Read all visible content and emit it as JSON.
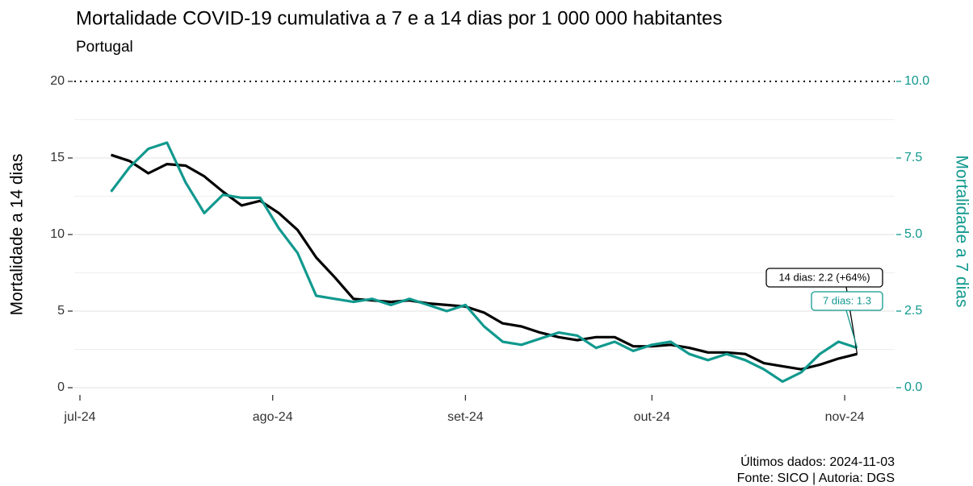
{
  "chart_data": {
    "type": "line",
    "title": "Mortalidade COVID-19 cumulativa a 7 e a 14 dias por 1 000 000 habitantes",
    "subtitle": "Portugal",
    "ylabel": "Mortalidade a 14 dias",
    "y2label": "Mortalidade a 7 dias",
    "caption": [
      "Últimos dados: 2024-11-03",
      "Fonte: SICO | Autoria: DGS"
    ],
    "x": [
      "2024-07-06",
      "2024-07-09",
      "2024-07-12",
      "2024-07-15",
      "2024-07-18",
      "2024-07-21",
      "2024-07-24",
      "2024-07-27",
      "2024-07-30",
      "2024-08-02",
      "2024-08-05",
      "2024-08-08",
      "2024-08-11",
      "2024-08-14",
      "2024-08-17",
      "2024-08-20",
      "2024-08-23",
      "2024-08-26",
      "2024-08-29",
      "2024-09-01",
      "2024-09-04",
      "2024-09-07",
      "2024-09-10",
      "2024-09-13",
      "2024-09-16",
      "2024-09-19",
      "2024-09-22",
      "2024-09-25",
      "2024-09-28",
      "2024-10-01",
      "2024-10-04",
      "2024-10-07",
      "2024-10-10",
      "2024-10-13",
      "2024-10-16",
      "2024-10-19",
      "2024-10-22",
      "2024-10-25",
      "2024-10-28",
      "2024-10-31",
      "2024-11-03"
    ],
    "series": [
      {
        "name": "14 dias",
        "color": "#000000",
        "axis": "y",
        "values": [
          15.2,
          14.8,
          14.0,
          14.6,
          14.5,
          13.8,
          12.8,
          11.9,
          12.2,
          11.4,
          10.3,
          8.5,
          7.2,
          5.8,
          5.7,
          5.6,
          5.7,
          5.5,
          5.4,
          5.3,
          4.9,
          4.2,
          4.0,
          3.6,
          3.3,
          3.1,
          3.3,
          3.3,
          2.7,
          2.7,
          2.8,
          2.6,
          2.3,
          2.3,
          2.2,
          1.6,
          1.4,
          1.2,
          1.5,
          1.9,
          2.2
        ]
      },
      {
        "name": "7 dias",
        "color": "#11998e",
        "axis": "y2",
        "values": [
          6.4,
          7.2,
          7.8,
          8.0,
          6.7,
          5.7,
          6.3,
          6.2,
          6.2,
          5.2,
          4.4,
          3.0,
          2.9,
          2.8,
          2.9,
          2.7,
          2.9,
          2.7,
          2.5,
          2.7,
          2.0,
          1.5,
          1.4,
          1.6,
          1.8,
          1.7,
          1.3,
          1.5,
          1.2,
          1.4,
          1.5,
          1.1,
          0.9,
          1.1,
          0.9,
          0.6,
          0.2,
          0.5,
          1.1,
          1.5,
          1.3
        ]
      }
    ],
    "annotations": [
      "14 dias: 2.2 (+64%)",
      "7 dias: 1.3"
    ],
    "xlim": [
      "2024-07-01",
      "2024-11-08"
    ],
    "xticks": [
      {
        "value": "2024-07-01",
        "label": "jul-24"
      },
      {
        "value": "2024-08-01",
        "label": "ago-24"
      },
      {
        "value": "2024-09-01",
        "label": "set-24"
      },
      {
        "value": "2024-10-01",
        "label": "out-24"
      },
      {
        "value": "2024-11-01",
        "label": "nov-24"
      }
    ],
    "ylim": [
      0,
      20
    ],
    "yticks": [
      0,
      5,
      10,
      15,
      20
    ],
    "y2lim": [
      0,
      10
    ],
    "y2ticks": [
      {
        "value": 0,
        "label": "0.0"
      },
      2.5,
      {
        "value": 5,
        "label": "5.0"
      },
      7.5,
      {
        "value": 10,
        "label": "10.0"
      }
    ],
    "grid": true
  }
}
